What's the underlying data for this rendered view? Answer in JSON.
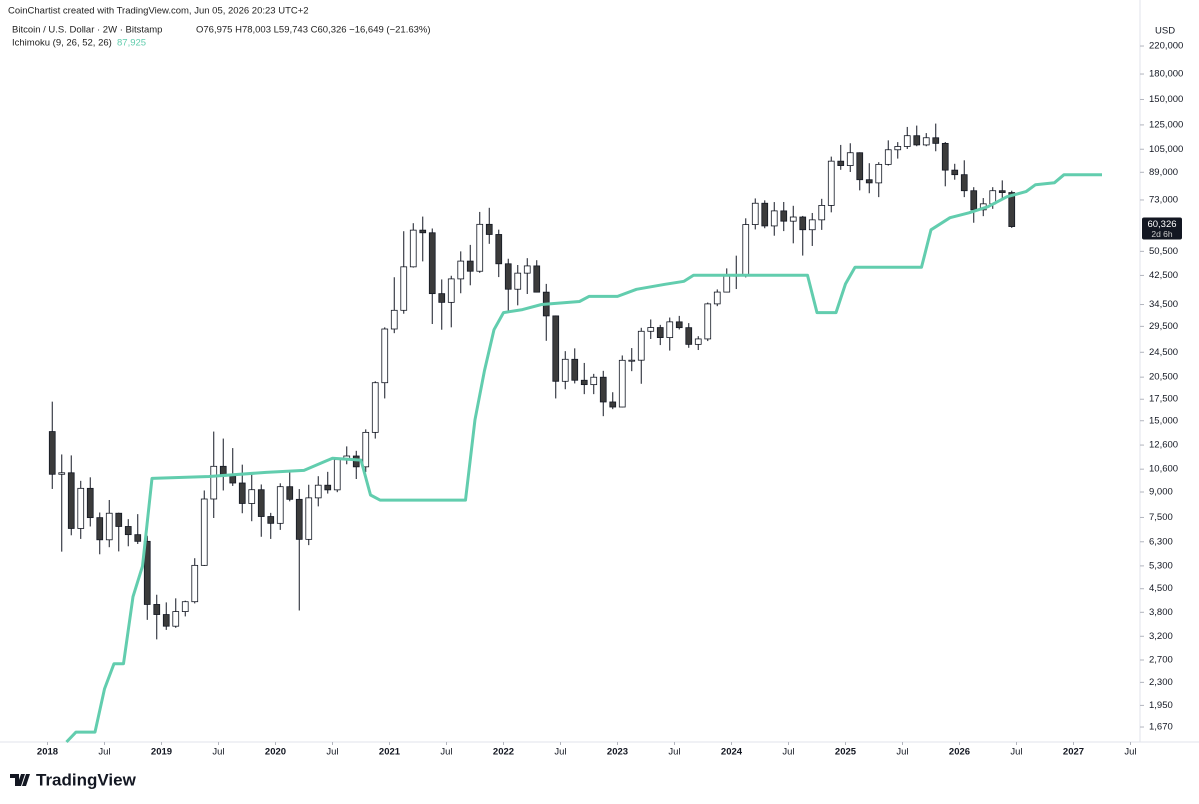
{
  "header": {
    "line1": "CoinChartist created with TradingView.com, Jun 05, 2026 20:23 UTC+2",
    "symbol": "Bitcoin / U.S. Dollar · 2W · Bitstamp",
    "ohlc": "O76,975 H78,003 L59,743 C60,326 −16,649 (−21.63%)",
    "indicator_value": "87,925",
    "brand": "TradingView"
  },
  "chart_data": {
    "type": "candlestick",
    "log_scale": true,
    "y_unit": "USD",
    "x": [
      "2018-01",
      "2018-02",
      "2018-03",
      "2018-04",
      "2018-05",
      "2018-06",
      "2018-07",
      "2018-08",
      "2018-09",
      "2018-10",
      "2018-11",
      "2018-12",
      "2019-01",
      "2019-02",
      "2019-03",
      "2019-04",
      "2019-05",
      "2019-06",
      "2019-07",
      "2019-08",
      "2019-09",
      "2019-10",
      "2019-11",
      "2019-12",
      "2020-01",
      "2020-02",
      "2020-03",
      "2020-04",
      "2020-05",
      "2020-06",
      "2020-07",
      "2020-08",
      "2020-09",
      "2020-10",
      "2020-11",
      "2020-12",
      "2021-01",
      "2021-02",
      "2021-03",
      "2021-04",
      "2021-05",
      "2021-06",
      "2021-07",
      "2021-08",
      "2021-09",
      "2021-10",
      "2021-11",
      "2021-12",
      "2022-01",
      "2022-02",
      "2022-03",
      "2022-04",
      "2022-05",
      "2022-06",
      "2022-07",
      "2022-08",
      "2022-09",
      "2022-10",
      "2022-11",
      "2022-12",
      "2023-01",
      "2023-02",
      "2023-03",
      "2023-04",
      "2023-05",
      "2023-06",
      "2023-07",
      "2023-08",
      "2023-09",
      "2023-10",
      "2023-11",
      "2023-12",
      "2024-01",
      "2024-02",
      "2024-03",
      "2024-04",
      "2024-05",
      "2024-06",
      "2024-07",
      "2024-08",
      "2024-09",
      "2024-10",
      "2024-11",
      "2024-12",
      "2025-01",
      "2025-02",
      "2025-03",
      "2025-04",
      "2025-05",
      "2025-06",
      "2025-07",
      "2025-08",
      "2025-09",
      "2025-10",
      "2025-11",
      "2025-12",
      "2026-01",
      "2026-02",
      "2026-03",
      "2026-04",
      "2026-05",
      "2026-06"
    ],
    "open": [
      13880,
      10220,
      10330,
      6930,
      9240,
      7490,
      6390,
      7730,
      7030,
      6630,
      6320,
      4020,
      3740,
      3440,
      3820,
      4100,
      5320,
      8560,
      10820,
      10080,
      9600,
      8290,
      9150,
      7550,
      7190,
      9350,
      8540,
      6410,
      8630,
      9450,
      9140,
      11350,
      11650,
      10780,
      13800,
      19700,
      28950,
      33100,
      45200,
      58800,
      57700,
      37300,
      35040,
      41460,
      47100,
      43800,
      61300,
      57000,
      46200,
      38500,
      43200,
      45500,
      37700,
      31800,
      19900,
      23300,
      20050,
      19430,
      20490,
      17160,
      16550,
      23130,
      23150,
      28480,
      29250,
      27220,
      30470,
      29230,
      25930,
      26960,
      34660,
      37720,
      42280,
      42580,
      61200,
      71300,
      60600,
      67500,
      62700,
      64600,
      58970,
      63300,
      70200,
      96400,
      93400,
      102400,
      84400,
      82500,
      94200,
      104600,
      107100,
      115700,
      108300,
      114000,
      109500,
      90400,
      87500,
      78000,
      68000,
      71000,
      78000,
      76975
    ],
    "high": [
      17200,
      11780,
      11700,
      9750,
      10000,
      7770,
      8500,
      7760,
      7410,
      7680,
      6580,
      4310,
      4080,
      4200,
      4130,
      5600,
      9100,
      13880,
      13200,
      12330,
      10950,
      10370,
      9500,
      7750,
      9580,
      10500,
      9190,
      9480,
      10080,
      10400,
      11450,
      12480,
      12090,
      14100,
      19900,
      29300,
      41950,
      58350,
      61800,
      64800,
      59500,
      41300,
      42400,
      50500,
      52900,
      67000,
      69000,
      59000,
      47900,
      45800,
      48100,
      47400,
      40000,
      31900,
      24700,
      25200,
      22700,
      20990,
      21450,
      18400,
      23950,
      25250,
      29200,
      31000,
      29820,
      31430,
      31800,
      30200,
      27500,
      35000,
      38450,
      44700,
      48970,
      64000,
      73800,
      72800,
      71900,
      71950,
      70000,
      65100,
      66500,
      73600,
      99600,
      108300,
      109600,
      102700,
      95000,
      95700,
      111900,
      110500,
      123200,
      124400,
      117900,
      126200,
      110600,
      94600,
      97000,
      80000,
      74000,
      80000,
      84000,
      78003
    ],
    "low": [
      9200,
      5870,
      6600,
      6430,
      7030,
      5760,
      6060,
      5880,
      6100,
      6200,
      3600,
      3130,
      3350,
      3400,
      3690,
      4050,
      5300,
      7470,
      9100,
      9400,
      7730,
      7300,
      6530,
      6430,
      6860,
      8420,
      3850,
      6150,
      8120,
      8900,
      8990,
      10980,
      9880,
      10380,
      13200,
      17600,
      28100,
      32300,
      44950,
      47000,
      30000,
      28800,
      29300,
      37400,
      39600,
      43300,
      53300,
      42000,
      32900,
      34300,
      37200,
      37600,
      26600,
      17600,
      18800,
      19600,
      18150,
      18150,
      15500,
      16300,
      16500,
      21400,
      19550,
      26950,
      25800,
      24800,
      28850,
      25300,
      24900,
      26550,
      34100,
      37600,
      38550,
      41900,
      59100,
      59600,
      56500,
      58400,
      53500,
      49000,
      52500,
      58900,
      66800,
      90600,
      89200,
      78200,
      76600,
      74500,
      93400,
      98200,
      105200,
      107300,
      107300,
      103500,
      80500,
      84400,
      74500,
      62000,
      65000,
      68500,
      74000,
      59743
    ],
    "close": [
      10220,
      10330,
      6930,
      9240,
      7490,
      6390,
      7730,
      7030,
      6630,
      6320,
      4020,
      3740,
      3440,
      3820,
      4100,
      5320,
      8560,
      10820,
      10080,
      9600,
      8290,
      9150,
      7550,
      7190,
      9350,
      8540,
      6410,
      8630,
      9450,
      9140,
      11350,
      11650,
      10780,
      13800,
      19700,
      28950,
      33100,
      45200,
      58800,
      57700,
      37300,
      35040,
      41460,
      47100,
      43800,
      61300,
      57000,
      46200,
      38500,
      43200,
      45500,
      37700,
      31800,
      19900,
      23300,
      20050,
      19430,
      20490,
      17160,
      16550,
      23130,
      23150,
      28480,
      29250,
      27220,
      30470,
      29230,
      25930,
      26960,
      34660,
      37720,
      42280,
      42580,
      61200,
      71300,
      60600,
      67500,
      62700,
      64600,
      58970,
      63300,
      70200,
      96400,
      93400,
      102400,
      84400,
      82500,
      94200,
      104600,
      107100,
      115700,
      108300,
      114000,
      109500,
      90400,
      87500,
      78000,
      68000,
      71000,
      78000,
      76975,
      60326
    ],
    "up_color": "#ffffff",
    "down_color": "#3b3b3b",
    "wick_color": "#131722",
    "overlay": {
      "name": "Ichimoku (9, 26, 52, 26)",
      "color": "#62cdae",
      "x": [
        "2018-03",
        "2018-04",
        "2018-06",
        "2018-07",
        "2018-08",
        "2018-09",
        "2018-10",
        "2018-11",
        "2018-12",
        "2019-06",
        "2019-12",
        "2020-04",
        "2020-06",
        "2020-07",
        "2020-10",
        "2020-11",
        "2020-12",
        "2021-09",
        "2021-10",
        "2021-11",
        "2021-12",
        "2022-01",
        "2022-03",
        "2022-05",
        "2022-09",
        "2022-10",
        "2023-01",
        "2023-03",
        "2023-06",
        "2023-08",
        "2023-09",
        "2024-09",
        "2024-10",
        "2024-12",
        "2025-01",
        "2025-02",
        "2025-09",
        "2025-10",
        "2025-12",
        "2026-02",
        "2026-04",
        "2026-06",
        "2026-08",
        "2026-09",
        "2026-11",
        "2026-12",
        "2027-04"
      ],
      "values": [
        1500,
        1610,
        1610,
        2195,
        2630,
        2630,
        4250,
        5290,
        9920,
        10060,
        10360,
        10510,
        11140,
        11470,
        11310,
        8810,
        8490,
        8490,
        15120,
        21500,
        28800,
        32570,
        33270,
        34500,
        35250,
        36570,
        36570,
        38470,
        39880,
        40740,
        42560,
        42560,
        32570,
        32570,
        40000,
        45060,
        45060,
        58930,
        64280,
        66600,
        69550,
        74710,
        77490,
        81440,
        82600,
        87500,
        87500
      ]
    },
    "last_price": {
      "value": 60326,
      "label": "60,326"
    },
    "countdown": "2d 6h",
    "ylim": [
      1500,
      306000
    ],
    "yticks": [
      {
        "value": 220000,
        "label": "220,000"
      },
      {
        "value": 180000,
        "label": "180,000"
      },
      {
        "value": 150000,
        "label": "150,000"
      },
      {
        "value": 125000,
        "label": "125,000"
      },
      {
        "value": 105000,
        "label": "105,000"
      },
      {
        "value": 89000,
        "label": "89,000"
      },
      {
        "value": 73000,
        "label": "73,000"
      },
      {
        "value": 50500,
        "label": "50,500"
      },
      {
        "value": 42500,
        "label": "42,500"
      },
      {
        "value": 34500,
        "label": "34,500"
      },
      {
        "value": 29500,
        "label": "29,500"
      },
      {
        "value": 24500,
        "label": "24,500"
      },
      {
        "value": 20500,
        "label": "20,500"
      },
      {
        "value": 17500,
        "label": "17,500"
      },
      {
        "value": 15000,
        "label": "15,000"
      },
      {
        "value": 12600,
        "label": "12,600"
      },
      {
        "value": 10600,
        "label": "10,600"
      },
      {
        "value": 9000,
        "label": "9,000"
      },
      {
        "value": 7500,
        "label": "7,500"
      },
      {
        "value": 6300,
        "label": "6,300"
      },
      {
        "value": 5300,
        "label": "5,300"
      },
      {
        "value": 4500,
        "label": "4,500"
      },
      {
        "value": 3800,
        "label": "3,800"
      },
      {
        "value": 3200,
        "label": "3,200"
      },
      {
        "value": 2700,
        "label": "2,700"
      },
      {
        "value": 2300,
        "label": "2,300"
      },
      {
        "value": 1950,
        "label": "1,950"
      },
      {
        "value": 1670,
        "label": "1,670"
      }
    ],
    "xlim": [
      "2017-08",
      "2027-08"
    ],
    "xticks": [
      {
        "value": "2018-01",
        "label": "2018"
      },
      {
        "value": "2018-07",
        "label": "Jul"
      },
      {
        "value": "2019-01",
        "label": "2019"
      },
      {
        "value": "2019-07",
        "label": "Jul"
      },
      {
        "value": "2020-01",
        "label": "2020"
      },
      {
        "value": "2020-07",
        "label": "Jul"
      },
      {
        "value": "2021-01",
        "label": "2021"
      },
      {
        "value": "2021-07",
        "label": "Jul"
      },
      {
        "value": "2022-01",
        "label": "2022"
      },
      {
        "value": "2022-07",
        "label": "Jul"
      },
      {
        "value": "2023-01",
        "label": "2023"
      },
      {
        "value": "2023-07",
        "label": "Jul"
      },
      {
        "value": "2024-01",
        "label": "2024"
      },
      {
        "value": "2024-07",
        "label": "Jul"
      },
      {
        "value": "2025-01",
        "label": "2025"
      },
      {
        "value": "2025-07",
        "label": "Jul"
      },
      {
        "value": "2026-01",
        "label": "2026"
      },
      {
        "value": "2026-07",
        "label": "Jul"
      },
      {
        "value": "2027-01",
        "label": "2027"
      },
      {
        "value": "2027-07",
        "label": "Jul"
      }
    ]
  }
}
